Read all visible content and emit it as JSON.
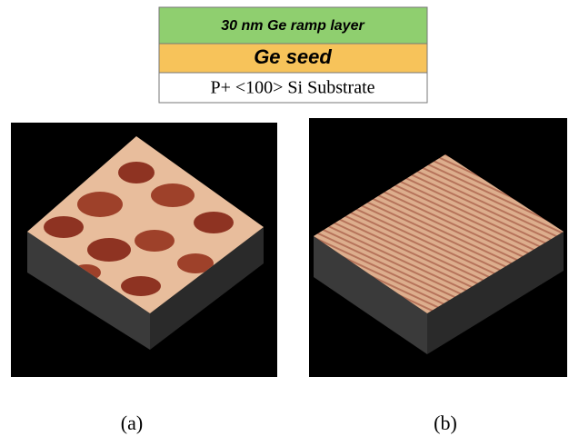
{
  "stack": {
    "layers": [
      "30 nm Ge ramp layer",
      "Ge seed",
      "P+ <100> Si Substrate"
    ]
  },
  "panels": [
    {
      "label": "(a)"
    },
    {
      "label": "(b)"
    }
  ]
}
